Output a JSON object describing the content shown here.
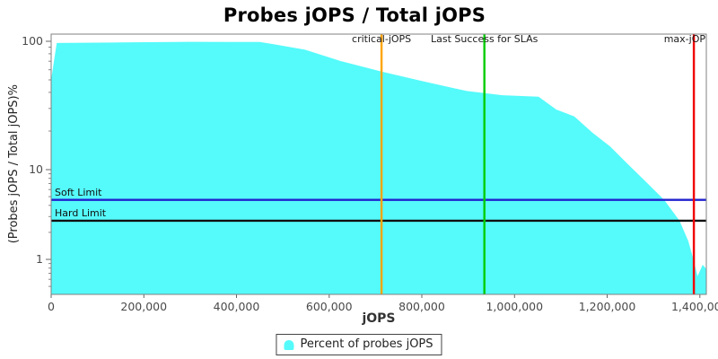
{
  "title": "Probes jOPS / Total jOPS",
  "legend": {
    "label": "Percent of probes jOPS",
    "swatch_color": "#55FAFA"
  },
  "colors": {
    "area": "#55FAFA",
    "critical_line": "#FFA500",
    "sla_line": "#00CC00",
    "max_line": "#F00000",
    "soft_limit_line": "#2121CE",
    "hard_limit_line": "#111111",
    "plot_border": "#808080",
    "tick": "#666666"
  },
  "chart_data": {
    "type": "area",
    "title": "Probes jOPS / Total jOPS",
    "xlabel": "jOPS",
    "ylabel": "(Probes jOPS / Total jOPS)%",
    "y_scale": "log",
    "grid": false,
    "legend_position": "bottom-center",
    "x_range": [
      0,
      1414000
    ],
    "y_range": [
      0.55,
      115
    ],
    "x_ticks": [
      {
        "value": 0,
        "label": "0"
      },
      {
        "value": 200000,
        "label": "200,000"
      },
      {
        "value": 400000,
        "label": "400,000"
      },
      {
        "value": 600000,
        "label": "600,000"
      },
      {
        "value": 800000,
        "label": "800,000"
      },
      {
        "value": 1000000,
        "label": "1,000,000"
      },
      {
        "value": 1200000,
        "label": "1,200,000"
      },
      {
        "value": 1400000,
        "label": "1,400,000"
      }
    ],
    "y_ticks": [
      {
        "value": 100,
        "label": "100"
      },
      {
        "value": 10,
        "label": "10"
      },
      {
        "value": 1,
        "label": "1"
      }
    ],
    "y_minor_ticks": [
      90,
      80,
      70,
      60,
      50,
      40,
      30,
      20,
      9,
      8,
      7,
      6,
      5,
      4,
      3,
      2,
      0.9,
      0.8,
      0.7,
      0.6,
      0.5
    ],
    "series": [
      {
        "name": "Percent of probes jOPS",
        "type": "area",
        "color": "#55FAFA",
        "points": [
          [
            0,
            50
          ],
          [
            12000,
            97
          ],
          [
            150000,
            98
          ],
          [
            300000,
            99
          ],
          [
            450000,
            98.7
          ],
          [
            480000,
            95
          ],
          [
            548000,
            86
          ],
          [
            626000,
            70
          ],
          [
            713000,
            58
          ],
          [
            800000,
            49
          ],
          [
            897000,
            41
          ],
          [
            974000,
            38
          ],
          [
            1052000,
            37
          ],
          [
            1090000,
            29.4
          ],
          [
            1129000,
            26
          ],
          [
            1168000,
            19.4
          ],
          [
            1206000,
            15.2
          ],
          [
            1245000,
            11
          ],
          [
            1284000,
            7.3
          ],
          [
            1323000,
            4.6
          ],
          [
            1356000,
            2.7
          ],
          [
            1375000,
            1.6
          ],
          [
            1385000,
            1.05
          ],
          [
            1395000,
            0.65
          ],
          [
            1406000,
            0.87
          ],
          [
            1414000,
            0.78
          ]
        ]
      }
    ],
    "markers": {
      "vertical": [
        {
          "id": "critical-jops",
          "label": "critical-jOPS",
          "x": 713000,
          "color": "#FFA500",
          "align": "center"
        },
        {
          "id": "last-success-slas",
          "label": "Last Success for SLAs",
          "x": 935000,
          "color": "#00CC00",
          "align": "center"
        },
        {
          "id": "max-jops",
          "label": "max-jOP",
          "x": 1387000,
          "color": "#F00000",
          "align": "right"
        }
      ],
      "horizontal": [
        {
          "id": "soft-limit",
          "label": "Soft Limit",
          "y": 4.6,
          "color": "#2121CE"
        },
        {
          "id": "hard-limit",
          "label": "Hard Limit",
          "y": 2.7,
          "color": "#111111"
        }
      ]
    }
  }
}
